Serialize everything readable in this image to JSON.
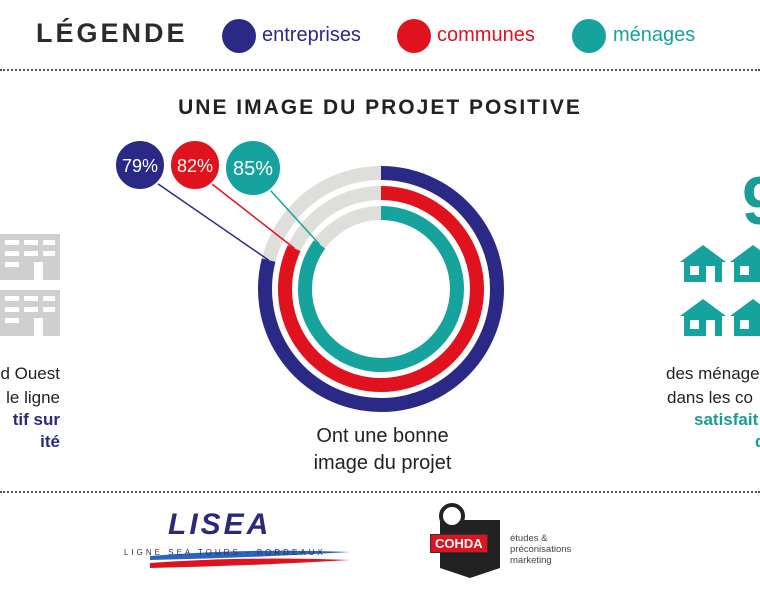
{
  "legend": {
    "title": "LÉGENDE",
    "items": [
      {
        "label": "entreprises",
        "color": "#2a2a86"
      },
      {
        "label": "communes",
        "color": "#e0121d"
      },
      {
        "label": "ménages",
        "color": "#17a39d"
      }
    ]
  },
  "section_title": "UNE IMAGE DU PROJET POSITIVE",
  "chart_data": {
    "type": "donut",
    "title": "UNE IMAGE DU PROJET POSITIVE",
    "caption_line1": "Ont une bonne",
    "caption_line2": "image du projet",
    "unit": "%",
    "series": [
      {
        "name": "entreprises",
        "value": 79,
        "label": "79%",
        "color": "#2a2a86"
      },
      {
        "name": "communes",
        "value": 82,
        "label": "82%",
        "color": "#e0121d"
      },
      {
        "name": "ménages",
        "value": 85,
        "label": "85%",
        "color": "#17a39d"
      }
    ],
    "remainder_color": "#dededa"
  },
  "left_panel": {
    "line1": "d Ouest",
    "line2": "le ligne",
    "line3": "tif sur",
    "line4": "ité"
  },
  "right_panel": {
    "big_number": "9",
    "line1": "des ménage",
    "line2": "dans les co",
    "line3": "satisfait",
    "line4": "d"
  },
  "footer": {
    "lisea_logo": "LISEA",
    "lisea_tagline": "LIGNE SEA TOURS - BORDEAUX",
    "cohda_logo": "COHDA",
    "cohda_sub": "études & préconisations marketing"
  }
}
